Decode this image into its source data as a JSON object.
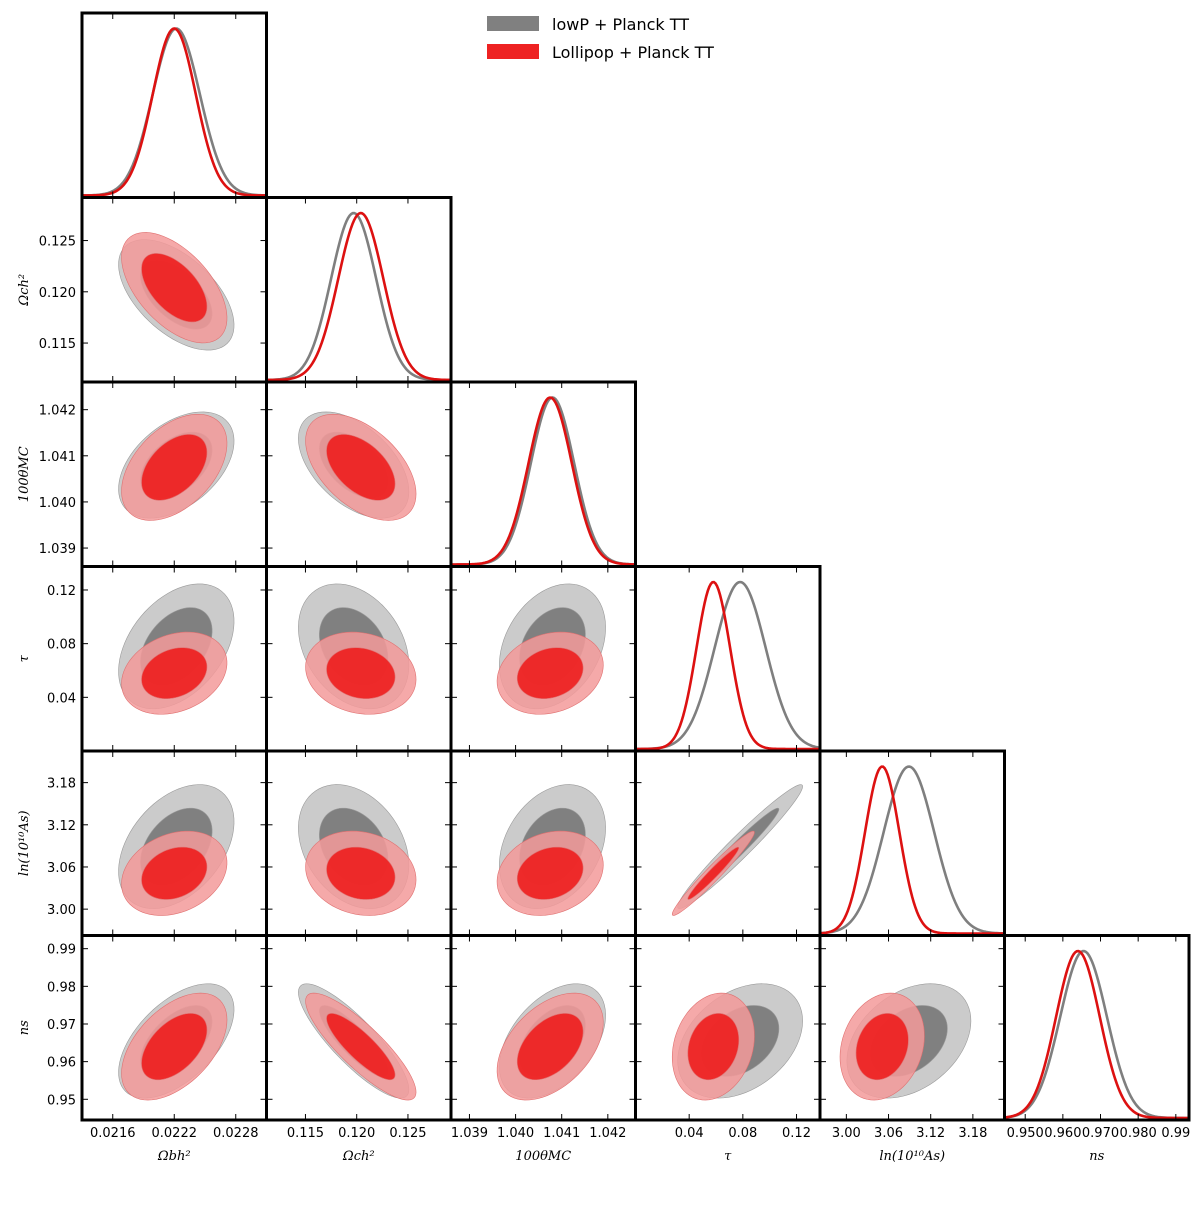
{
  "chart_data": {
    "type": "triangle-corner-plot",
    "legend": {
      "placement": "top-right",
      "entries": [
        {
          "key": "gray",
          "label": "lowP + Planck TT",
          "color": "#808080"
        },
        {
          "key": "red",
          "label": "Lollipop + Planck TT",
          "color": "#ee2222"
        }
      ]
    },
    "colors": {
      "gray_line": "#7f7f7f",
      "gray_inner": "#808080",
      "gray_outer": "#cbcbcb",
      "red_line": "#dd1111",
      "red_inner": "#ee2020",
      "red_outer": "#f39a9a"
    },
    "parameters": [
      {
        "name": "ombh2",
        "label": "Ωbh²",
        "range": [
          0.0213,
          0.0231
        ],
        "ticks": [
          0.0216,
          0.0222,
          0.0228
        ],
        "tick_labels": [
          "0.0216",
          "0.0222",
          "0.0228"
        ],
        "gray": {
          "mean": 0.02222,
          "sigma": 0.00023
        },
        "red": {
          "mean": 0.0222,
          "sigma": 0.00021
        }
      },
      {
        "name": "omch2",
        "label": "Ωch²",
        "range": [
          0.1112,
          0.1292
        ],
        "ticks": [
          0.115,
          0.12,
          0.125
        ],
        "tick_labels": [
          "0.115",
          "0.120",
          "0.125"
        ],
        "gray": {
          "mean": 0.1197,
          "sigma": 0.0022
        },
        "red": {
          "mean": 0.1204,
          "sigma": 0.0022
        }
      },
      {
        "name": "theta",
        "label": "100θMC",
        "range": [
          1.0386,
          1.0426
        ],
        "ticks": [
          1.039,
          1.04,
          1.041,
          1.042
        ],
        "tick_labels": [
          "1.039",
          "1.040",
          "1.041",
          "1.042"
        ],
        "gray": {
          "mean": 1.0408,
          "sigma": 0.00047
        },
        "red": {
          "mean": 1.04075,
          "sigma": 0.00047
        }
      },
      {
        "name": "tau",
        "label": "τ",
        "range": [
          0.0,
          0.1375
        ],
        "ticks": [
          0.04,
          0.08,
          0.12
        ],
        "tick_labels": [
          "0.04",
          "0.08",
          "0.12"
        ],
        "gray": {
          "mean": 0.078,
          "sigma": 0.019
        },
        "red": {
          "mean": 0.058,
          "sigma": 0.0125
        }
      },
      {
        "name": "lnAs",
        "label": "ln(10¹⁰As)",
        "range": [
          2.9625,
          3.225
        ],
        "ticks": [
          3.0,
          3.06,
          3.12,
          3.18
        ],
        "tick_labels": [
          "3.00",
          "3.06",
          "3.12",
          "3.18"
        ],
        "gray": {
          "mean": 3.089,
          "sigma": 0.036
        },
        "red": {
          "mean": 3.051,
          "sigma": 0.0245
        }
      },
      {
        "name": "ns",
        "label": "ns",
        "range": [
          0.9445,
          0.9935
        ],
        "ticks": [
          0.95,
          0.96,
          0.97,
          0.98,
          0.99
        ],
        "tick_labels": [
          "0.950",
          "0.960",
          "0.970",
          "0.980",
          "0.99"
        ],
        "ytick_labels": [
          "0.95",
          "0.96",
          "0.97",
          "0.98",
          "0.99"
        ],
        "gray": {
          "mean": 0.9655,
          "sigma": 0.0062
        },
        "red": {
          "mean": 0.964,
          "sigma": 0.0058
        }
      }
    ],
    "correlations": {
      "gray": [
        [
          1,
          -0.55,
          0.45,
          0.4,
          0.4,
          0.55
        ],
        [
          -0.55,
          1,
          -0.5,
          -0.3,
          -0.3,
          -0.85
        ],
        [
          0.45,
          -0.5,
          1,
          0.3,
          0.3,
          0.45
        ],
        [
          0.4,
          -0.3,
          0.3,
          1,
          0.97,
          0.35
        ],
        [
          0.4,
          -0.3,
          0.3,
          0.97,
          1,
          0.35
        ],
        [
          0.55,
          -0.85,
          0.45,
          0.35,
          0.35,
          1
        ]
      ],
      "red": [
        [
          1,
          -0.55,
          0.45,
          0.25,
          0.25,
          0.5
        ],
        [
          -0.55,
          1,
          -0.5,
          -0.15,
          -0.15,
          -0.85
        ],
        [
          0.45,
          -0.5,
          1,
          0.2,
          0.2,
          0.45
        ],
        [
          0.25,
          -0.15,
          0.2,
          1,
          0.97,
          0.2
        ],
        [
          0.25,
          -0.15,
          0.2,
          0.97,
          1,
          0.2
        ],
        [
          0.5,
          -0.85,
          0.45,
          0.2,
          0.2,
          1
        ]
      ]
    }
  }
}
